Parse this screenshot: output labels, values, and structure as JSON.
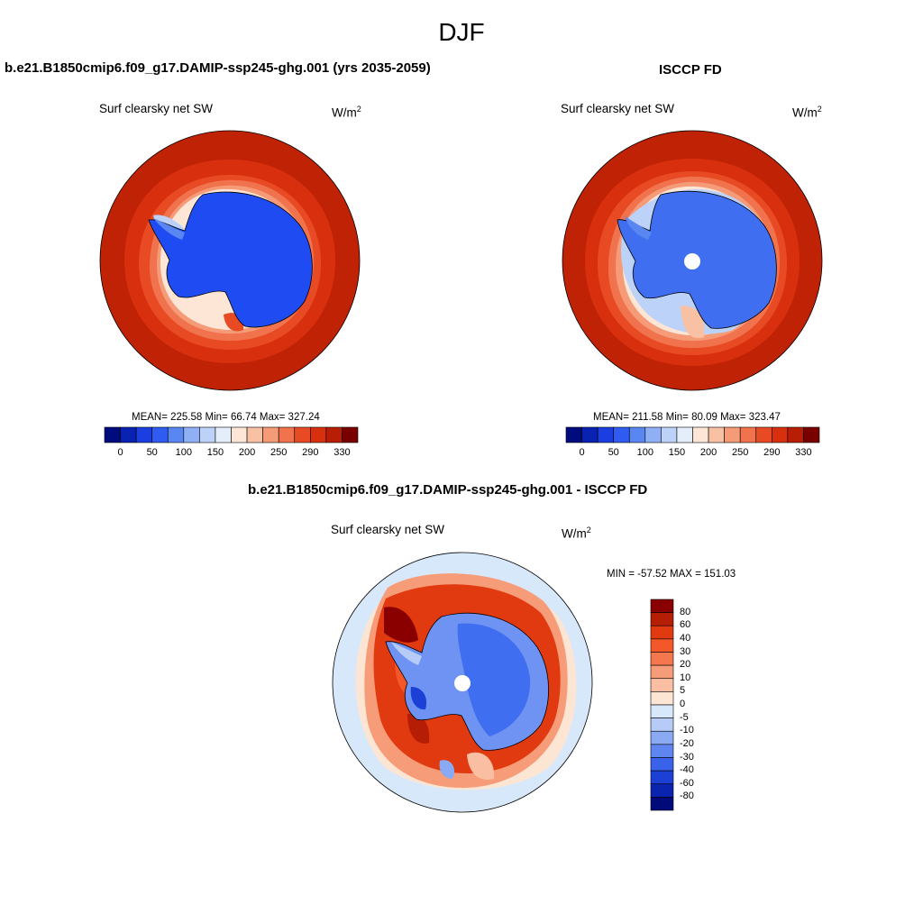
{
  "figure": {
    "season": "DJF",
    "model_title": "b.e21.B1850cmip6.f09_g17.DAMIP-ssp245-ghg.001 (yrs 2035-2059)",
    "obs_title": "ISCCP FD",
    "diff_title": "b.e21.B1850cmip6.f09_g17.DAMIP-ssp245-ghg.001 - ISCCP FD"
  },
  "panels": {
    "model": {
      "variable": "Surf clearsky net SW",
      "units_base": "W/m",
      "units_exp": "2",
      "stats": "MEAN= 225.58  Min=  66.74  Max= 327.24"
    },
    "obs": {
      "variable": "Surf clearsky net SW",
      "units_base": "W/m",
      "units_exp": "2",
      "stats": "MEAN= 211.58  Min=  80.09  Max= 323.47"
    },
    "diff": {
      "variable": "Surf clearsky net SW",
      "units_base": "W/m",
      "units_exp": "2",
      "stats": "MIN = -57.52 MAX = 151.03"
    }
  },
  "colorbars": {
    "main": {
      "labels": [
        "0",
        "50",
        "100",
        "150",
        "200",
        "250",
        "290",
        "330"
      ],
      "colors": [
        "#000b7e",
        "#0a22b2",
        "#1a3ee0",
        "#2f5bf0",
        "#5a86f2",
        "#8fb0f5",
        "#bcd2f8",
        "#e4eefb",
        "#fde6d6",
        "#f9c1a3",
        "#f59b78",
        "#f0734e",
        "#e84a24",
        "#d8300e",
        "#b81e06",
        "#7a0000"
      ]
    },
    "diff": {
      "labels": [
        "80",
        "60",
        "40",
        "30",
        "20",
        "10",
        "5",
        "0",
        "-5",
        "-10",
        "-20",
        "-30",
        "-40",
        "-60",
        "-80"
      ],
      "colors": [
        "#8a0000",
        "#b51d05",
        "#e23a10",
        "#f3572a",
        "#f5774d",
        "#f79c78",
        "#fabfa2",
        "#fde5d4",
        "#d8e8fb",
        "#b6ccf7",
        "#8aabf3",
        "#5f86f0",
        "#3a62ea",
        "#1c3fd6",
        "#0b24b0",
        "#000a78"
      ]
    }
  }
}
